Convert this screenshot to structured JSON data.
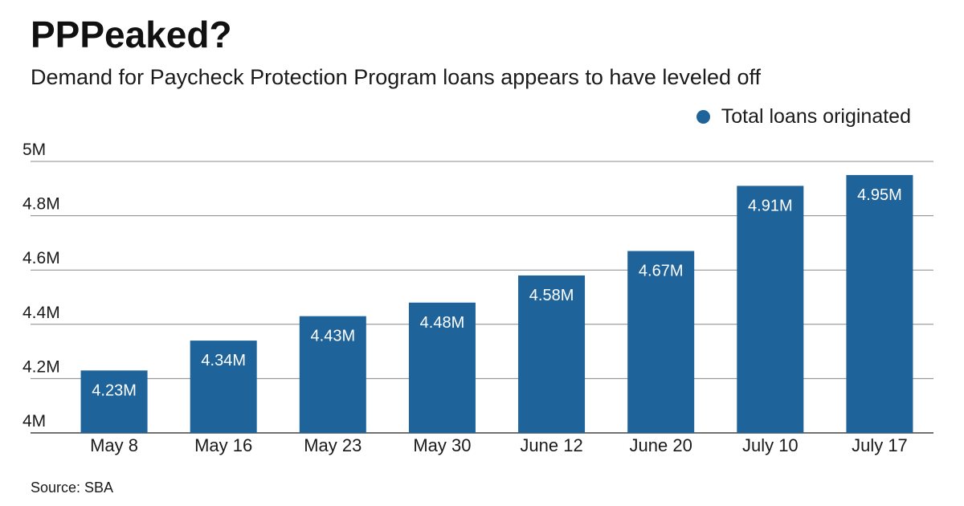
{
  "header": {
    "title": "PPPeaked?",
    "subtitle": "Demand for Paycheck Protection Program loans appears to have leveled off"
  },
  "legend": {
    "label": "Total loans originated",
    "position": "top-right"
  },
  "source": "Source: SBA",
  "colors": {
    "bar": "#1f639b",
    "grid": "#888888",
    "text": "#1a1a1a"
  },
  "chart_data": {
    "type": "bar",
    "title": "PPPeaked?",
    "subtitle": "Demand for Paycheck Protection Program loans appears to have leveled off",
    "xlabel": "",
    "ylabel": "",
    "categories": [
      "May 8",
      "May 16",
      "May 23",
      "May 30",
      "June 12",
      "June 20",
      "July 10",
      "July 17"
    ],
    "series": [
      {
        "name": "Total loans originated",
        "values": [
          4.23,
          4.34,
          4.43,
          4.48,
          4.58,
          4.67,
          4.91,
          4.95
        ],
        "labels": [
          "4.23M",
          "4.34M",
          "4.43M",
          "4.48M",
          "4.58M",
          "4.67M",
          "4.91M",
          "4.95M"
        ]
      }
    ],
    "ylim": [
      4,
      5
    ],
    "yticks": [
      4,
      4.2,
      4.4,
      4.6,
      4.8,
      5
    ],
    "ytick_labels": [
      "4M",
      "4.2M",
      "4.4M",
      "4.6M",
      "4.8M",
      "5M"
    ],
    "grid": true,
    "legend_position": "top-right"
  }
}
